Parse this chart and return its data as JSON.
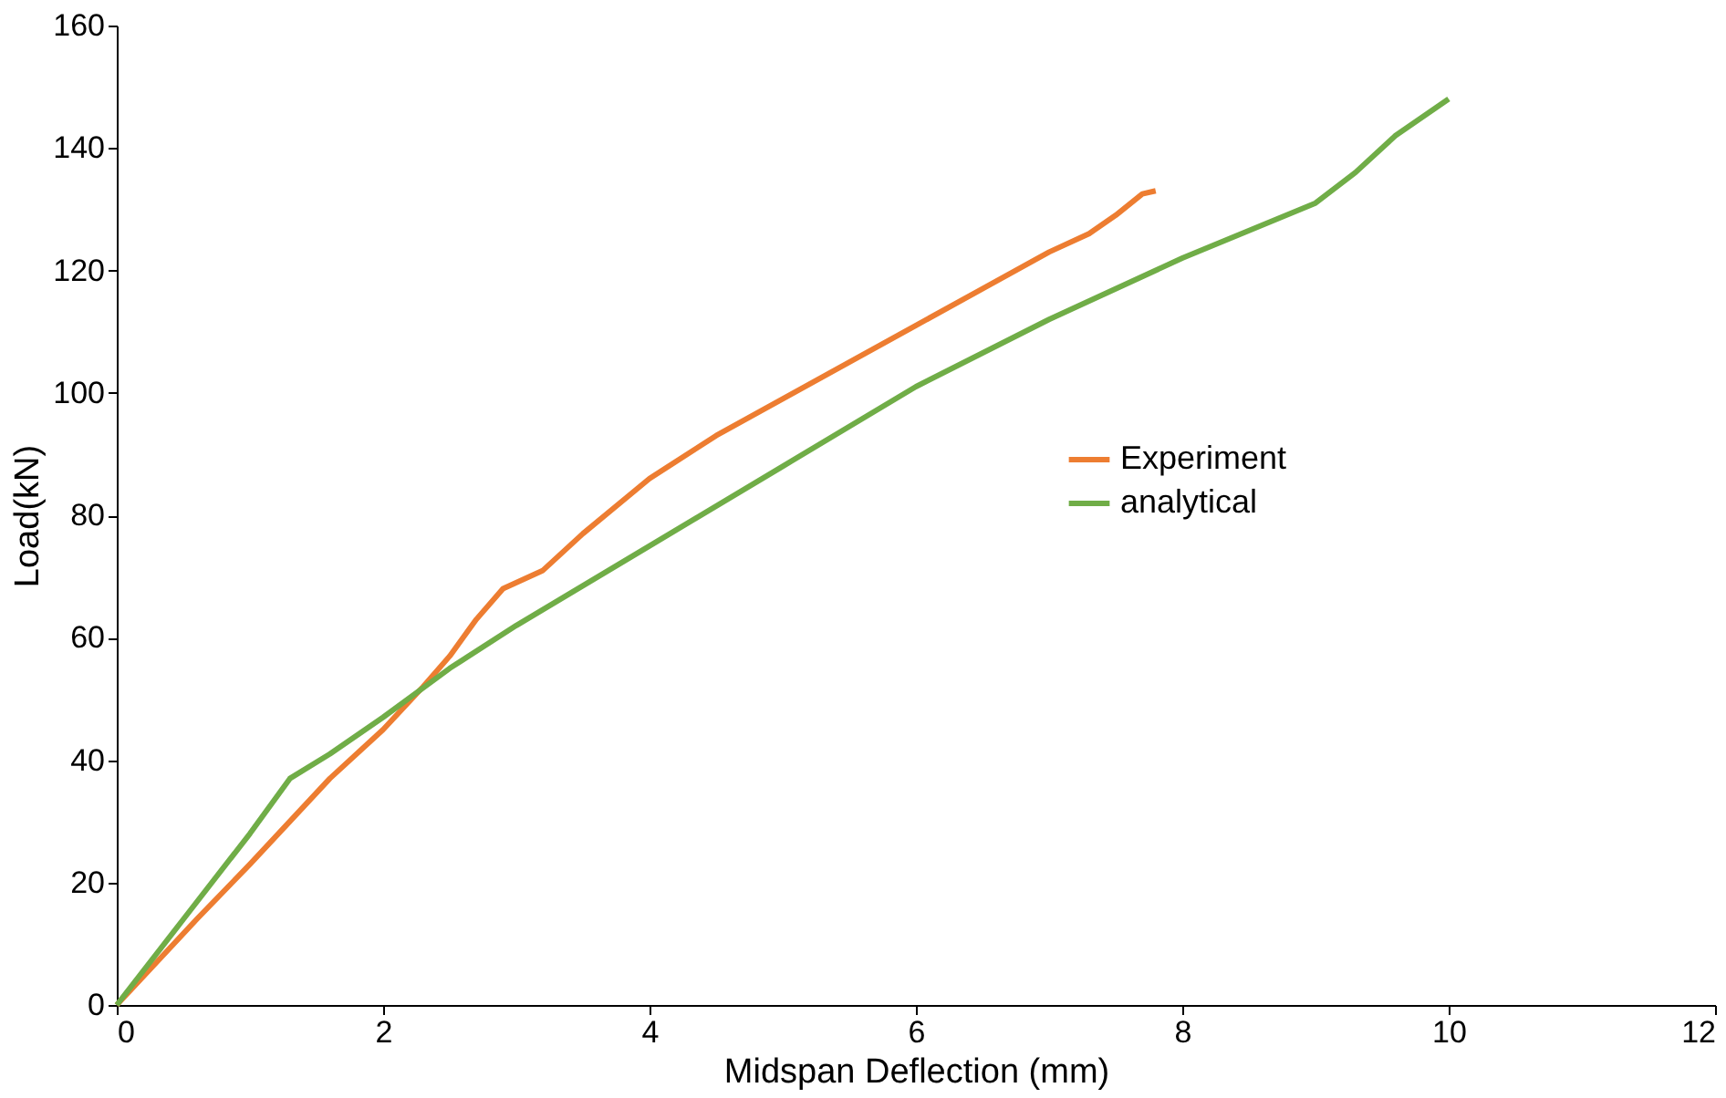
{
  "chart_data": {
    "type": "line",
    "xlabel": "Midspan  Deflection (mm)",
    "ylabel": "Load(kN)",
    "xlim": [
      0,
      12
    ],
    "xticks": [
      0,
      2,
      4,
      6,
      8,
      10,
      12
    ],
    "ylim": [
      0,
      160
    ],
    "yticks": [
      0,
      20,
      40,
      60,
      80,
      100,
      120,
      140,
      160
    ],
    "grid": false,
    "legend": "right",
    "line_style": "solid",
    "marker": "none",
    "series": [
      {
        "name": "Experiment",
        "color": "#ed7d31",
        "x": [
          0,
          0.3,
          0.6,
          1.0,
          1.3,
          1.6,
          2.0,
          2.3,
          2.5,
          2.7,
          2.9,
          3.2,
          3.5,
          4.0,
          4.5,
          5.0,
          5.5,
          6.0,
          6.5,
          7.0,
          7.3,
          7.5,
          7.7,
          7.8
        ],
        "values": [
          0,
          7,
          14,
          23,
          30,
          37,
          45,
          52,
          57,
          63,
          68,
          71,
          77,
          86,
          93,
          99,
          105,
          111,
          117,
          123,
          126,
          129,
          132.5,
          133
        ]
      },
      {
        "name": "analytical",
        "color": "#70ad47",
        "x": [
          0,
          0.5,
          1.0,
          1.3,
          1.6,
          2.0,
          2.5,
          3.0,
          4.0,
          5.0,
          6.0,
          7.0,
          8.0,
          9.0,
          9.3,
          9.6,
          10.0
        ],
        "values": [
          0,
          14,
          28,
          37,
          41,
          47,
          55,
          62,
          75,
          88,
          101,
          112,
          122,
          131,
          136,
          142,
          148
        ]
      }
    ]
  }
}
